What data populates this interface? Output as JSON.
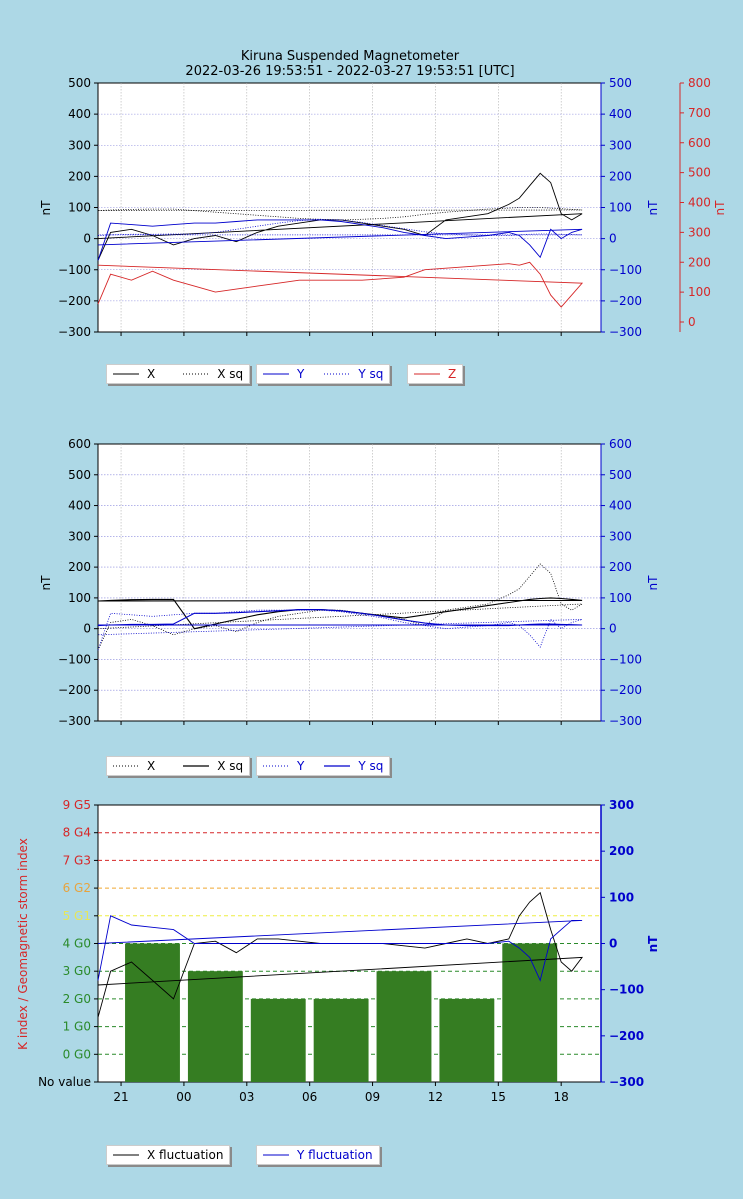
{
  "title": {
    "line1": "Kiruna Suspended Magnetometer",
    "line2": "2022-03-26 19:53:51 - 2022-03-27 19:53:51 [UTC]"
  },
  "colors": {
    "background": "#add8e6",
    "x": "#000000",
    "y": "#0000cc",
    "z": "#d62728",
    "kbar": "#357d22",
    "grid_blue": "#8888dd"
  },
  "x_ticks": [
    "21",
    "00",
    "03",
    "06",
    "09",
    "12",
    "15",
    "18"
  ],
  "panel1": {
    "ylabel_left": "nT",
    "ylabel_right_y": "nT",
    "ylabel_right_z": "nT",
    "y_ticks": [
      "500",
      "400",
      "300",
      "200",
      "100",
      "0",
      "−100",
      "−200",
      "−300"
    ],
    "y2_ticks": [
      "500",
      "400",
      "300",
      "200",
      "100",
      "0",
      "−100",
      "−200",
      "−300"
    ],
    "z_ticks": [
      "800",
      "700",
      "600",
      "500",
      "400",
      "300",
      "200",
      "100",
      "0"
    ],
    "legend": [
      {
        "label": "X",
        "style": "solid",
        "color": "#000000"
      },
      {
        "label": "X sq",
        "style": "dotted",
        "color": "#000000"
      },
      {
        "label": "Y",
        "style": "solid",
        "color": "#0000cc"
      },
      {
        "label": "Y sq",
        "style": "dotted",
        "color": "#0000cc"
      },
      {
        "label": "Z",
        "style": "solid",
        "color": "#d62728"
      }
    ]
  },
  "panel2": {
    "ylabel_left": "nT",
    "ylabel_right": "nT",
    "y_ticks": [
      "600",
      "500",
      "400",
      "300",
      "200",
      "100",
      "0",
      "−100",
      "−200",
      "−300"
    ],
    "y2_ticks": [
      "600",
      "500",
      "400",
      "300",
      "200",
      "100",
      "0",
      "−100",
      "−200",
      "−300"
    ],
    "legend": [
      {
        "label": "X",
        "style": "dotted",
        "color": "#000000"
      },
      {
        "label": "X sq",
        "style": "solid",
        "color": "#000000"
      },
      {
        "label": "Y",
        "style": "dotted",
        "color": "#0000cc"
      },
      {
        "label": "Y sq",
        "style": "solid",
        "color": "#0000cc"
      }
    ]
  },
  "panel3": {
    "ylabel_left": "K index / Geomagnetic storm index",
    "ylabel_right": "nT",
    "k_ticks": [
      {
        "label": "9 G5",
        "color": "#d62728",
        "line": "#d62728"
      },
      {
        "label": "8 G4",
        "color": "#d62728",
        "line": "#d62728"
      },
      {
        "label": "7 G3",
        "color": "#d62728",
        "line": "#d62728"
      },
      {
        "label": "6 G2",
        "color": "#e8a33d",
        "line": "#f0a830"
      },
      {
        "label": "5 G1",
        "color": "#e6e65a",
        "line": "#eeee40"
      },
      {
        "label": "4 G0",
        "color": "#2a8a2a",
        "line": "#2a8a2a"
      },
      {
        "label": "3 G0",
        "color": "#2a8a2a",
        "line": "#2a8a2a"
      },
      {
        "label": "2 G0",
        "color": "#2a8a2a",
        "line": "#2a8a2a"
      },
      {
        "label": "1 G0",
        "color": "#2a8a2a",
        "line": "#2a8a2a"
      },
      {
        "label": "0 G0",
        "color": "#2a8a2a",
        "line": "#2a8a2a"
      },
      {
        "label": "No value",
        "color": "#000000",
        "line": "none"
      }
    ],
    "y2_ticks": [
      "300",
      "200",
      "100",
      "0",
      "−100",
      "−200",
      "−300"
    ],
    "legend": [
      {
        "label": "X fluctuation",
        "style": "solid",
        "color": "#000000"
      },
      {
        "label": "Y fluctuation",
        "style": "solid",
        "color": "#0000cc"
      }
    ]
  },
  "chart_data": [
    {
      "type": "line",
      "title": "Kiruna Suspended Magnetometer",
      "subtitle": "2022-03-26 19:53:51 - 2022-03-27 19:53:51 [UTC]",
      "x_hours_utc": [
        19.9,
        20.5,
        21.5,
        22.5,
        23.5,
        0.5,
        1.5,
        2.5,
        3.5,
        4.5,
        5.5,
        6.5,
        7.5,
        8.5,
        9.5,
        10.5,
        11.5,
        12.5,
        13.5,
        14.5,
        15.5,
        16.0,
        16.5,
        17.0,
        17.5,
        18.0,
        18.5,
        19.0,
        19.9
      ],
      "ylim": [
        -300,
        500
      ],
      "ylim_z": [
        0,
        800
      ],
      "series": [
        {
          "name": "X",
          "values": [
            -70,
            20,
            30,
            10,
            -20,
            0,
            10,
            -10,
            20,
            40,
            50,
            60,
            60,
            50,
            40,
            30,
            10,
            60,
            70,
            80,
            110,
            130,
            170,
            210,
            180,
            80,
            60,
            80,
            0
          ]
        },
        {
          "name": "X sq",
          "values": [
            90,
            92,
            94,
            95,
            95,
            90,
            85,
            80,
            75,
            70,
            65,
            62,
            60,
            62,
            65,
            70,
            78,
            85,
            90,
            95,
            98,
            100,
            100,
            100,
            98,
            96,
            94,
            92,
            90
          ]
        },
        {
          "name": "Y",
          "values": [
            -70,
            50,
            45,
            40,
            45,
            50,
            50,
            55,
            60,
            60,
            60,
            60,
            55,
            45,
            35,
            20,
            10,
            0,
            5,
            10,
            20,
            10,
            -20,
            -60,
            30,
            0,
            20,
            30,
            -20
          ]
        },
        {
          "name": "Y sq",
          "values": [
            10,
            12,
            14,
            14,
            15,
            15,
            20,
            30,
            40,
            50,
            58,
            62,
            60,
            52,
            42,
            32,
            22,
            15,
            12,
            10,
            10,
            12,
            14,
            15,
            15,
            14,
            13,
            12,
            12
          ]
        },
        {
          "name": "Z",
          "values": [
            60,
            160,
            140,
            170,
            140,
            120,
            100,
            110,
            120,
            130,
            140,
            140,
            140,
            140,
            145,
            150,
            175,
            180,
            185,
            190,
            195,
            190,
            200,
            160,
            90,
            50,
            90,
            130,
            190
          ]
        }
      ]
    },
    {
      "type": "line",
      "x_hours_utc": [
        19.9,
        20.5,
        21.5,
        22.5,
        23.5,
        0.5,
        1.5,
        2.5,
        3.5,
        4.5,
        5.5,
        6.5,
        7.5,
        8.5,
        9.5,
        10.5,
        11.5,
        12.5,
        13.5,
        14.5,
        15.5,
        16.0,
        16.5,
        17.0,
        17.5,
        18.0,
        18.5,
        19.0,
        19.9
      ],
      "ylim": [
        -300,
        600
      ],
      "series": [
        {
          "name": "X",
          "values": [
            -70,
            20,
            30,
            10,
            -20,
            0,
            10,
            -10,
            20,
            40,
            50,
            60,
            60,
            50,
            40,
            30,
            10,
            60,
            70,
            80,
            110,
            130,
            170,
            210,
            180,
            80,
            60,
            80,
            0
          ]
        },
        {
          "name": "X sq",
          "values": [
            90,
            92,
            94,
            95,
            95,
            0,
            15,
            30,
            45,
            55,
            62,
            62,
            58,
            50,
            42,
            35,
            45,
            55,
            65,
            75,
            85,
            90,
            95,
            98,
            100,
            98,
            95,
            92,
            90
          ]
        },
        {
          "name": "Y",
          "values": [
            -70,
            50,
            45,
            40,
            45,
            50,
            50,
            55,
            60,
            60,
            60,
            60,
            55,
            45,
            35,
            20,
            10,
            0,
            5,
            10,
            20,
            10,
            -20,
            -60,
            30,
            0,
            20,
            30,
            -20
          ]
        },
        {
          "name": "Y sq",
          "values": [
            10,
            12,
            14,
            14,
            15,
            50,
            50,
            52,
            55,
            58,
            62,
            62,
            58,
            50,
            40,
            28,
            18,
            12,
            10,
            10,
            10,
            12,
            14,
            15,
            15,
            14,
            13,
            12,
            12
          ]
        }
      ]
    },
    {
      "type": "bar",
      "categories": [
        "21-00",
        "00-03",
        "03-06",
        "06-09",
        "09-12",
        "12-15",
        "15-18",
        "18-21"
      ],
      "values": [
        4,
        3,
        2,
        2,
        3,
        2,
        4,
        null
      ],
      "ylim": [
        -1,
        9
      ],
      "series_lines": [
        {
          "name": "X fluctuation",
          "x_hours_utc": [
            19.9,
            20.5,
            21.5,
            22.5,
            23.5,
            0.5,
            1.5,
            2.5,
            3.5,
            4.5,
            5.5,
            6.5,
            7.5,
            8.5,
            9.5,
            10.5,
            11.5,
            12.5,
            13.5,
            14.5,
            15.5,
            16.0,
            16.5,
            17.0,
            17.5,
            18.0,
            18.5,
            19.0,
            19.9
          ],
          "values": [
            -160,
            -60,
            -40,
            -80,
            -120,
            0,
            5,
            -20,
            10,
            10,
            5,
            0,
            0,
            0,
            0,
            -5,
            -10,
            0,
            10,
            0,
            10,
            60,
            90,
            110,
            30,
            -40,
            -60,
            -30,
            -90
          ]
        },
        {
          "name": "Y fluctuation",
          "x_hours_utc": [
            19.9,
            20.5,
            21.5,
            22.5,
            23.5,
            0.5,
            1.5,
            2.5,
            3.5,
            4.5,
            5.5,
            6.5,
            7.5,
            8.5,
            9.5,
            10.5,
            11.5,
            12.5,
            13.5,
            14.5,
            15.5,
            16.0,
            16.5,
            17.0,
            17.5,
            18.0,
            18.5,
            19.0,
            19.9
          ],
          "values": [
            -80,
            60,
            40,
            35,
            30,
            0,
            0,
            0,
            0,
            0,
            0,
            0,
            0,
            0,
            0,
            0,
            0,
            0,
            0,
            0,
            5,
            -10,
            -30,
            -80,
            10,
            30,
            50,
            50,
            0
          ]
        }
      ],
      "y2lim": [
        -300,
        300
      ]
    }
  ]
}
